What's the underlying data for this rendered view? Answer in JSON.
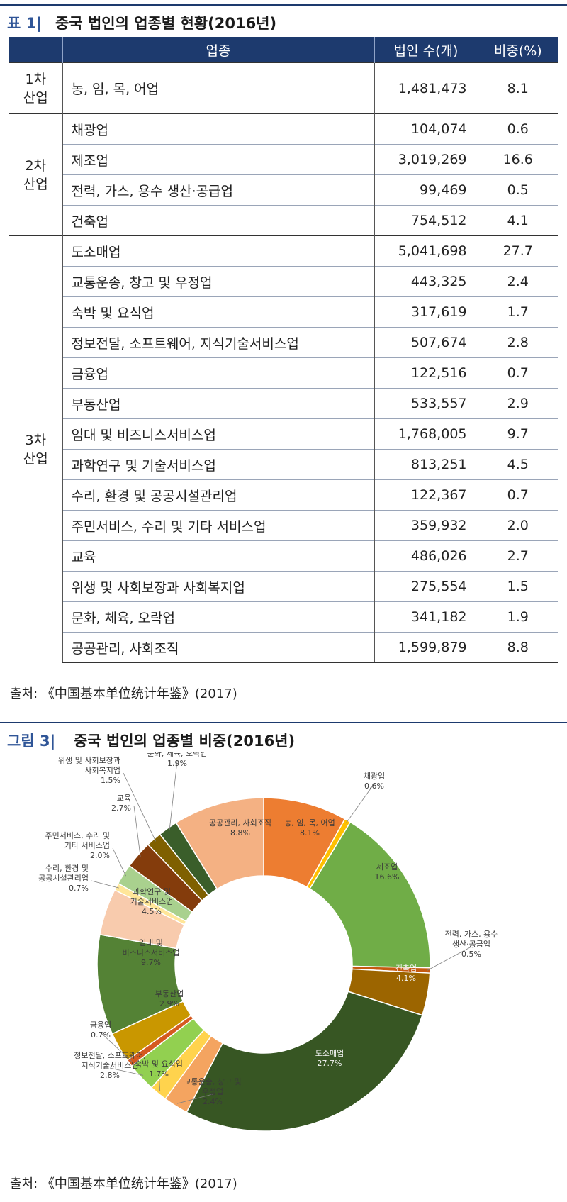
{
  "table_caption": {
    "label": "표 1|",
    "title": "중국 법인의 업종별 현황(2016년)"
  },
  "table": {
    "headers": [
      "업종",
      "법인 수(개)",
      "비중(%)"
    ],
    "groups": [
      {
        "name": "1차\n산업",
        "rows": [
          {
            "industry": "농, 임, 목,  어업",
            "count": "1,481,473",
            "share": "8.1"
          }
        ]
      },
      {
        "name": "2차\n산업",
        "rows": [
          {
            "industry": "채광업",
            "count": "104,074",
            "share": "0.6"
          },
          {
            "industry": "제조업",
            "count": "3,019,269",
            "share": "16.6"
          },
          {
            "industry": "전력, 가스, 용수 생산·공급업",
            "count": "99,469",
            "share": "0.5"
          },
          {
            "industry": "건축업",
            "count": "754,512",
            "share": "4.1"
          }
        ]
      },
      {
        "name": "3차\n산업",
        "rows": [
          {
            "industry": "도소매업",
            "count": "5,041,698",
            "share": "27.7"
          },
          {
            "industry": "교통운송, 창고 및 우정업",
            "count": "443,325",
            "share": "2.4"
          },
          {
            "industry": "숙박 및 요식업",
            "count": "317,619",
            "share": "1.7"
          },
          {
            "industry": "정보전달, 소프트웨어, 지식기술서비스업",
            "count": "507,674",
            "share": "2.8"
          },
          {
            "industry": "금융업",
            "count": "122,516",
            "share": "0.7"
          },
          {
            "industry": "부동산업",
            "count": "533,557",
            "share": "2.9"
          },
          {
            "industry": "임대 및 비즈니스서비스업",
            "count": "1,768,005",
            "share": "9.7"
          },
          {
            "industry": "과학연구 및 기술서비스업",
            "count": "813,251",
            "share": "4.5"
          },
          {
            "industry": "수리, 환경 및 공공시설관리업",
            "count": "122,367",
            "share": "0.7"
          },
          {
            "industry": "주민서비스, 수리 및 기타 서비스업",
            "count": "359,932",
            "share": "2.0"
          },
          {
            "industry": "교육",
            "count": "486,026",
            "share": "2.7"
          },
          {
            "industry": "위생 및 사회보장과 사회복지업",
            "count": "275,554",
            "share": "1.5"
          },
          {
            "industry": "문화, 체육, 오락업",
            "count": "341,182",
            "share": "1.9"
          },
          {
            "industry": "공공관리, 사회조직",
            "count": "1,599,879",
            "share": "8.8"
          }
        ]
      }
    ]
  },
  "table_source": "출처: 《中国基本单位统计年鉴》(2017)",
  "figure_caption": {
    "label": "그림 3|",
    "title": "중국 법인의 업종별 비중(2016년)"
  },
  "figure_source": "출처: 《中国基本单位统计年鉴》(2017)",
  "chart_data": {
    "type": "pie",
    "donut": true,
    "title": "중국 법인의 업종별 비중(2016년)",
    "unit": "%",
    "slices": [
      {
        "label": "농, 임, 목, 어업",
        "value": 8.1,
        "display": "8.1%",
        "color": "#ED7D31"
      },
      {
        "label": "채광업",
        "value": 0.6,
        "display": "0.6%",
        "color": "#FFC000"
      },
      {
        "label": "제조업",
        "value": 16.6,
        "display": "16.6%",
        "color": "#70AD47"
      },
      {
        "label": "전력, 가스, 용수 생산·공급업",
        "value": 0.5,
        "display": "0.5%",
        "color": "#C55A11"
      },
      {
        "label": "건축업",
        "value": 4.1,
        "display": "4.1%",
        "color": "#9C6500"
      },
      {
        "label": "도소매업",
        "value": 27.7,
        "display": "27.7%",
        "color": "#375623"
      },
      {
        "label": "교통운송, 창고 및 우정업",
        "value": 2.4,
        "display": "2.4%",
        "color": "#F4A460"
      },
      {
        "label": "숙박 및 요식업",
        "value": 1.7,
        "display": "1.7%",
        "color": "#FFD34D"
      },
      {
        "label": "정보전달, 소프트웨어, 지식기술서비스업",
        "value": 2.8,
        "display": "2.8%",
        "color": "#92D050"
      },
      {
        "label": "금융업",
        "value": 0.7,
        "display": "0.7%",
        "color": "#D55A20"
      },
      {
        "label": "부동산업",
        "value": 2.9,
        "display": "2.9%",
        "color": "#C99700"
      },
      {
        "label": "임대 및 비즈니스서비스업",
        "value": 9.7,
        "display": "9.7%",
        "color": "#548235"
      },
      {
        "label": "과학연구 및 기술서비스업",
        "value": 4.5,
        "display": "4.5%",
        "color": "#F8CBAD"
      },
      {
        "label": "수리, 환경 및 공공시설관리업",
        "value": 0.7,
        "display": "0.7%",
        "color": "#FFE699"
      },
      {
        "label": "주민서비스, 수리 및 기타 서비스업",
        "value": 2.0,
        "display": "2.0%",
        "color": "#A9D18E"
      },
      {
        "label": "교육",
        "value": 2.7,
        "display": "2.7%",
        "color": "#843C0C"
      },
      {
        "label": "위생 및 사회보장과 사회복지업",
        "value": 1.5,
        "display": "1.5%",
        "color": "#7F6000"
      },
      {
        "label": "문화, 체육, 오락업",
        "value": 1.9,
        "display": "1.9%",
        "color": "#3A5E2A"
      },
      {
        "label": "공공관리, 사회조직",
        "value": 8.8,
        "display": "8.8%",
        "color": "#F4B183"
      }
    ]
  }
}
